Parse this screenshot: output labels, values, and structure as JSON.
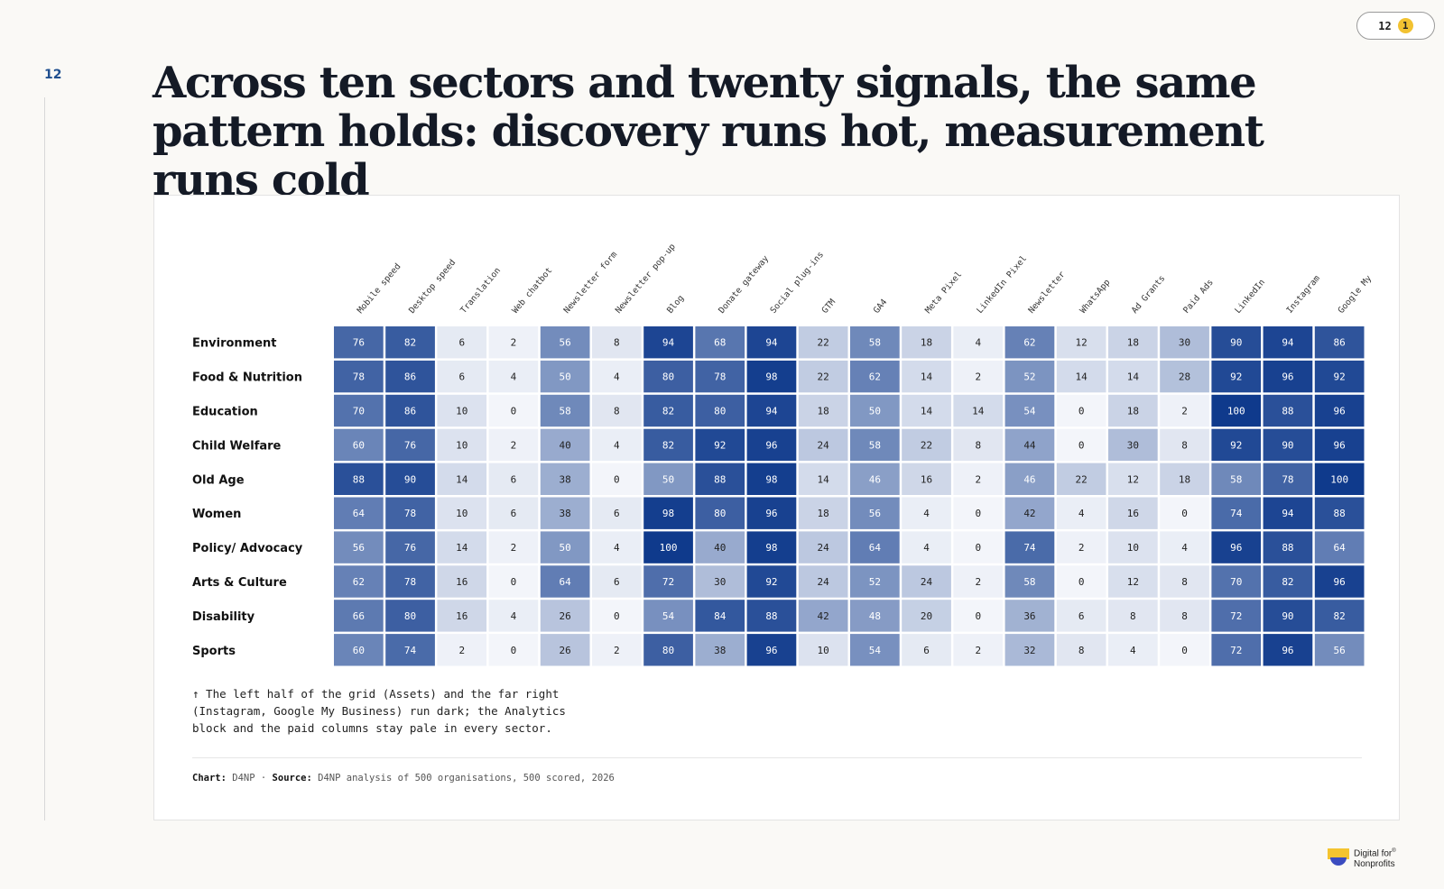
{
  "page_number": "12",
  "badge": {
    "count": "12",
    "notice": "1"
  },
  "headline": "Across ten sectors and twenty signals, the same pattern holds: discovery runs hot, measurement runs cold",
  "logo": {
    "line1": "Digital for",
    "line2": "Nonprofits",
    "mark": "®"
  },
  "colors": {
    "scale_low": "#f3f5fa",
    "scale_high": "#0f3a8c",
    "accent": "#1f4f8f"
  },
  "chart_data": {
    "type": "heatmap",
    "columns": [
      "Mobile speed",
      "Desktop speed",
      "Translation",
      "Web chatbot",
      "Newsletter form",
      "Newsletter pop-up",
      "Blog",
      "Donate gateway",
      "Social plug-ins",
      "GTM",
      "GA4",
      "Meta Pixel",
      "LinkedIn Pixel",
      "Newsletter",
      "WhatsApp",
      "Ad Grants",
      "Paid Ads",
      "LinkedIn",
      "Instagram",
      "Google My"
    ],
    "rows": [
      "Environment",
      "Food & Nutrition",
      "Education",
      "Child Welfare",
      "Old Age",
      "Women",
      "Policy/ Advocacy",
      "Arts & Culture",
      "Disability",
      "Sports"
    ],
    "values": [
      [
        76,
        82,
        6,
        2,
        56,
        8,
        94,
        68,
        94,
        22,
        58,
        18,
        4,
        62,
        12,
        18,
        30,
        90,
        94,
        86
      ],
      [
        78,
        86,
        6,
        4,
        50,
        4,
        80,
        78,
        98,
        22,
        62,
        14,
        2,
        52,
        14,
        14,
        28,
        92,
        96,
        92
      ],
      [
        70,
        86,
        10,
        0,
        58,
        8,
        82,
        80,
        94,
        18,
        50,
        14,
        14,
        54,
        0,
        18,
        2,
        100,
        88,
        96
      ],
      [
        60,
        76,
        10,
        2,
        40,
        4,
        82,
        92,
        96,
        24,
        58,
        22,
        8,
        44,
        0,
        30,
        8,
        92,
        90,
        96
      ],
      [
        88,
        90,
        14,
        6,
        38,
        0,
        50,
        88,
        98,
        14,
        46,
        16,
        2,
        46,
        22,
        12,
        18,
        58,
        78,
        100
      ],
      [
        64,
        78,
        10,
        6,
        38,
        6,
        98,
        80,
        96,
        18,
        56,
        4,
        0,
        42,
        4,
        16,
        0,
        74,
        94,
        88
      ],
      [
        56,
        76,
        14,
        2,
        50,
        4,
        100,
        40,
        98,
        24,
        64,
        4,
        0,
        74,
        2,
        10,
        4,
        96,
        88,
        64
      ],
      [
        62,
        78,
        16,
        0,
        64,
        6,
        72,
        30,
        92,
        24,
        52,
        24,
        2,
        58,
        0,
        12,
        8,
        70,
        82,
        96
      ],
      [
        66,
        80,
        16,
        4,
        26,
        0,
        54,
        84,
        88,
        42,
        48,
        20,
        0,
        36,
        6,
        8,
        8,
        72,
        90,
        82
      ],
      [
        60,
        74,
        2,
        0,
        26,
        2,
        80,
        38,
        96,
        10,
        54,
        6,
        2,
        32,
        8,
        4,
        0,
        72,
        96,
        56
      ]
    ],
    "value_range": [
      0,
      100
    ],
    "note": [
      "↑ The left half of the grid (Assets) and the far right",
      "(Instagram, Google My Business) run dark; the Analytics",
      "block and the paid columns stay pale in every sector."
    ],
    "source": {
      "chart_label": "Chart:",
      "chart_value": "D4NP",
      "separator": "·",
      "source_label": "Source:",
      "source_value": "D4NP analysis of 500 organisations, 500 scored, 2026"
    }
  }
}
